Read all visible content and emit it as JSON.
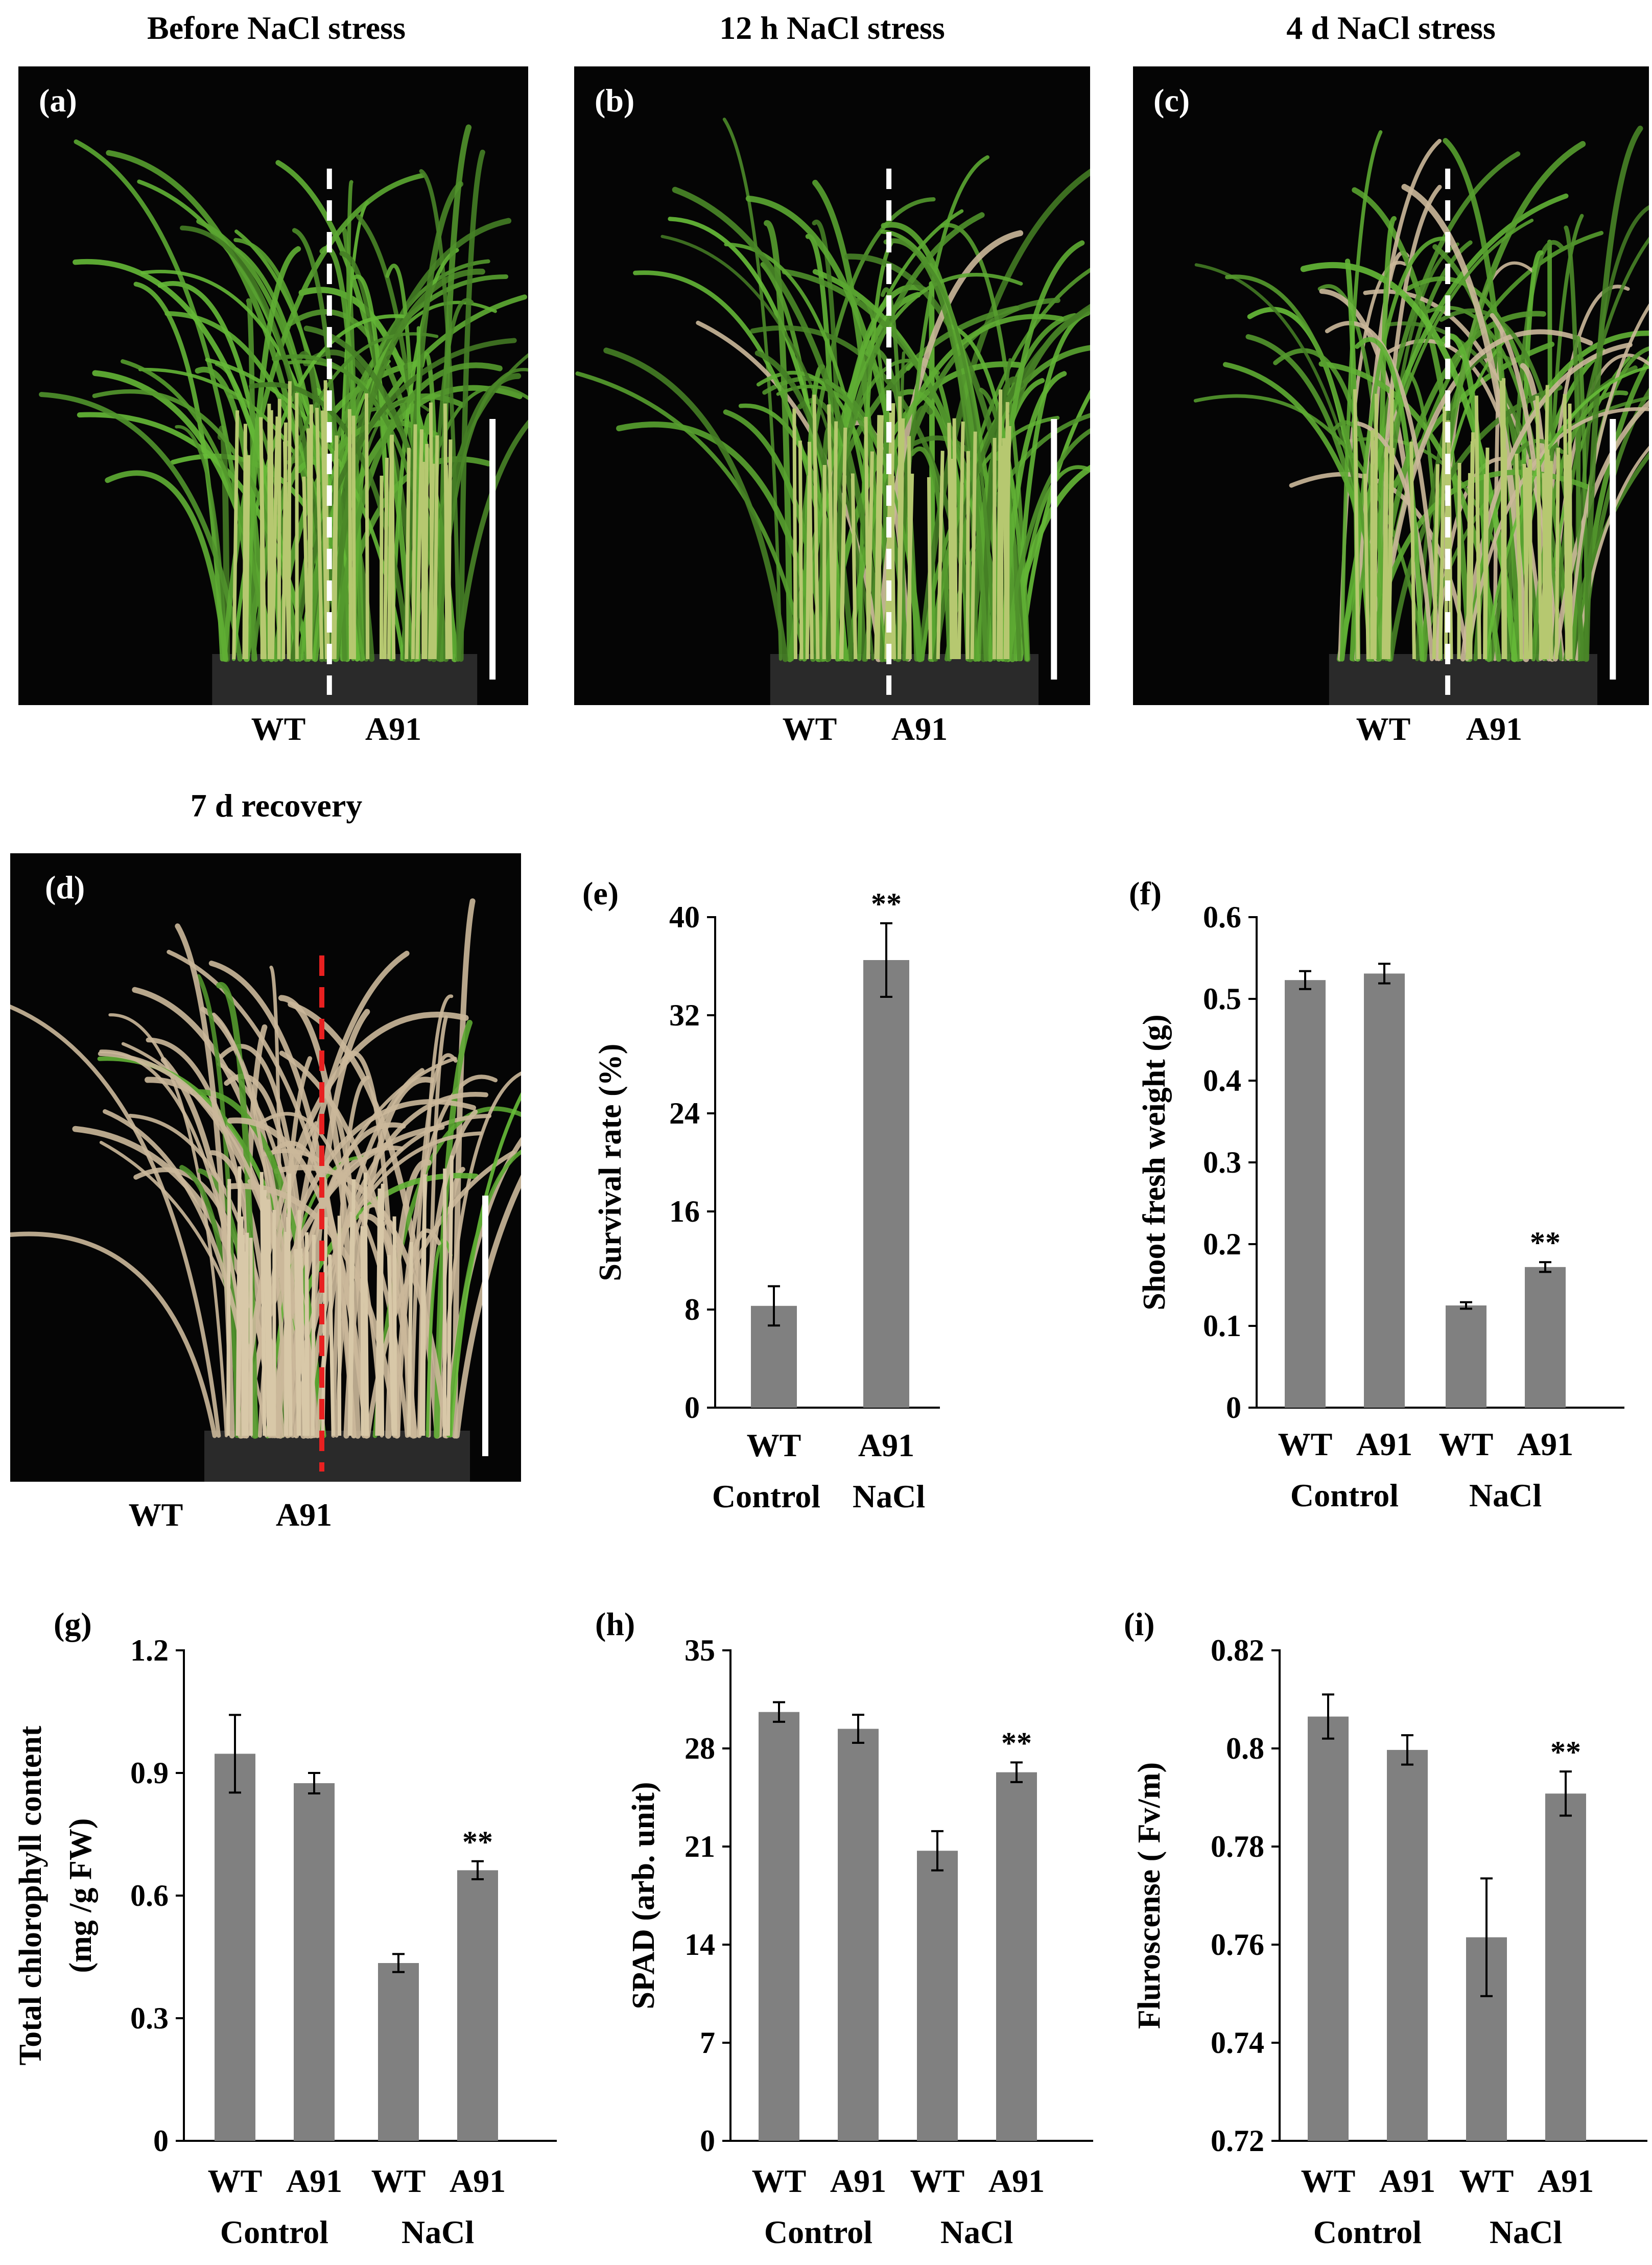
{
  "photos": [
    {
      "title": "Before NaCl stress",
      "panel": "(a)",
      "left_label": "WT",
      "right_label": "A91",
      "divider_color": "#ffffff"
    },
    {
      "title": "12 h NaCl stress",
      "panel": "(b)",
      "left_label": "WT",
      "right_label": "A91",
      "divider_color": "#ffffff"
    },
    {
      "title": "4 d  NaCl stress",
      "panel": "(c)",
      "left_label": "WT",
      "right_label": "A91",
      "divider_color": "#ffffff"
    },
    {
      "title": "7 d recovery",
      "panel": "(d)",
      "left_label": "WT",
      "right_label": "A91",
      "divider_color": "#e82020"
    }
  ],
  "colors": {
    "bar": "#808080",
    "axis": "#000000",
    "photo_bg": "#050505",
    "leaf_green": "#6e9a3c",
    "leaf_dry": "#cbb89a"
  },
  "chart_data": [
    {
      "panel": "(e)",
      "type": "bar",
      "categories": [
        "WT",
        "A91"
      ],
      "groups": [
        "Control",
        "NaCl"
      ],
      "values": [
        8.3,
        36.5
      ],
      "errors": [
        1.6,
        3.0
      ],
      "significance": [
        "",
        "**"
      ],
      "ylabel": "Survival rate (%)",
      "ylim": [
        0,
        40
      ],
      "yticks": [
        "0",
        "8",
        "16",
        "24",
        "32",
        "40"
      ],
      "grid": false,
      "legend": "none"
    },
    {
      "panel": "(f)",
      "type": "bar",
      "categories": [
        "WT",
        "A91",
        "WT",
        "A91"
      ],
      "groups": [
        "Control",
        "NaCl"
      ],
      "values": [
        0.523,
        0.531,
        0.125,
        0.172
      ],
      "errors": [
        0.011,
        0.012,
        0.004,
        0.006
      ],
      "significance": [
        "",
        "",
        "",
        "**"
      ],
      "ylabel": "Shoot  fresh  weight (g)",
      "ylim": [
        0,
        0.6
      ],
      "yticks": [
        "0",
        "0.1",
        "0.2",
        "0.3",
        "0.4",
        "0.5",
        "0.6"
      ],
      "grid": false,
      "legend": "none"
    },
    {
      "panel": "(g)",
      "type": "bar",
      "categories": [
        "WT",
        "A91",
        "WT",
        "A91"
      ],
      "groups": [
        "Control",
        "NaCl"
      ],
      "values": [
        0.947,
        0.875,
        0.435,
        0.662
      ],
      "errors": [
        0.095,
        0.025,
        0.022,
        0.022
      ],
      "significance": [
        "",
        "",
        "",
        "**"
      ],
      "ylabel": "Total  chlorophyll content",
      "ylabel2": "(mg /g FW)",
      "ylim": [
        0,
        1.2
      ],
      "yticks": [
        "0",
        "0.3",
        "0.6",
        "0.9",
        "1.2"
      ],
      "grid": false,
      "legend": "none"
    },
    {
      "panel": "(h)",
      "type": "bar",
      "categories": [
        "WT",
        "A91",
        "WT",
        "A91"
      ],
      "groups": [
        "Control",
        "NaCl"
      ],
      "values": [
        30.6,
        29.4,
        20.7,
        26.3
      ],
      "errors": [
        0.7,
        1.0,
        1.4,
        0.7
      ],
      "significance": [
        "",
        "",
        "",
        "**"
      ],
      "ylabel": "SPAD (arb. unit)",
      "ylim": [
        0,
        35
      ],
      "yticks": [
        "0",
        "7",
        "14",
        "21",
        "28",
        "35"
      ],
      "grid": false,
      "legend": "none"
    },
    {
      "panel": "(i)",
      "type": "bar",
      "categories": [
        "WT",
        "A91",
        "WT",
        "A91"
      ],
      "groups": [
        "Control",
        "NaCl"
      ],
      "values": [
        0.8065,
        0.7997,
        0.7615,
        0.7908
      ],
      "errors": [
        0.0045,
        0.003,
        0.012,
        0.0045
      ],
      "significance": [
        "",
        "",
        "",
        "**"
      ],
      "ylabel": "Fluroscense ( Fv/m)",
      "ylim": [
        0.72,
        0.82
      ],
      "yticks": [
        "0.72",
        "0.74",
        "0.76",
        "0.78",
        "0.8",
        "0.82"
      ],
      "grid": false,
      "legend": "none"
    }
  ]
}
